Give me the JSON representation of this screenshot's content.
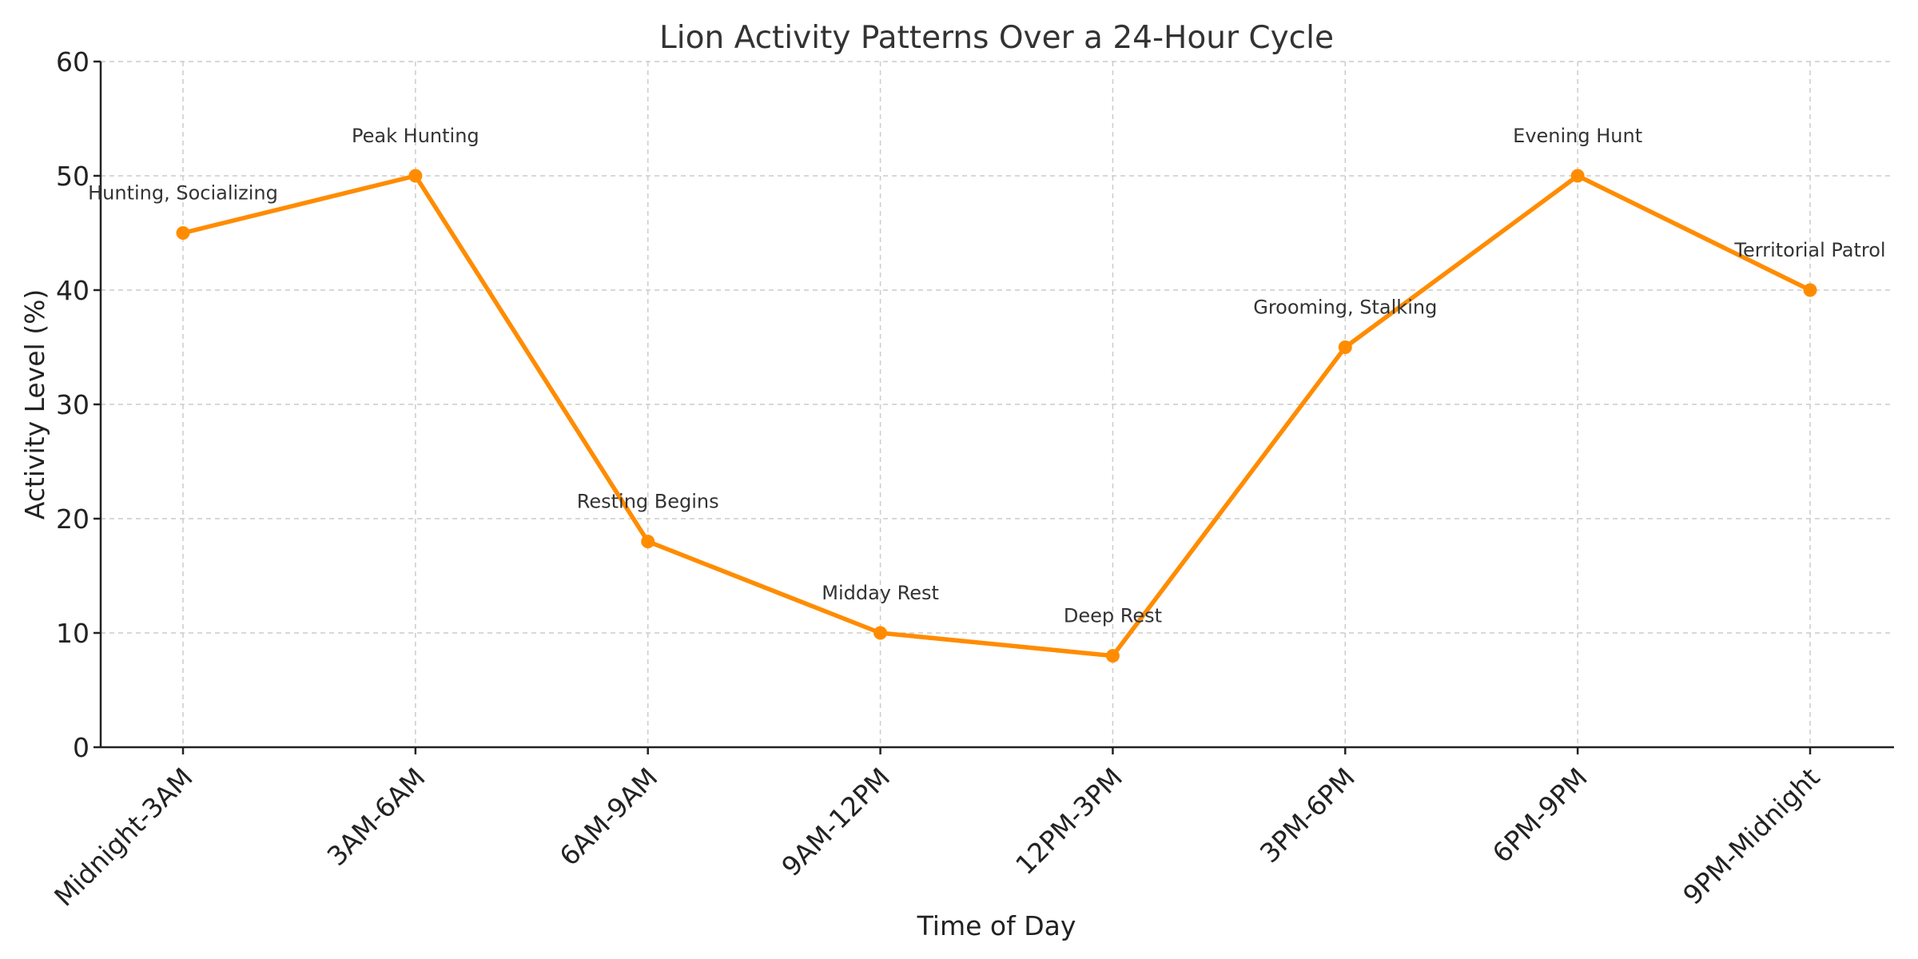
{
  "chart_data": {
    "type": "line",
    "title": "Lion Activity Patterns Over a 24-Hour Cycle",
    "xlabel": "Time of Day",
    "ylabel": "Activity Level (%)",
    "categories": [
      "Midnight-3AM",
      "3AM-6AM",
      "6AM-9AM",
      "9AM-12PM",
      "12PM-3PM",
      "3PM-6PM",
      "6PM-9PM",
      "9PM-Midnight"
    ],
    "values": [
      45,
      50,
      18,
      10,
      8,
      35,
      50,
      40
    ],
    "annotations": [
      "Hunting, Socializing",
      "Peak Hunting",
      "Resting Begins",
      "Midday Rest",
      "Deep Rest",
      "Grooming, Stalking",
      "Evening Hunt",
      "Territorial Patrol"
    ],
    "ylim": [
      0,
      60
    ],
    "yticks": [
      0,
      10,
      20,
      30,
      40,
      50,
      60
    ],
    "grid": true,
    "line_color": "#ff8c00",
    "marker": "circle"
  }
}
